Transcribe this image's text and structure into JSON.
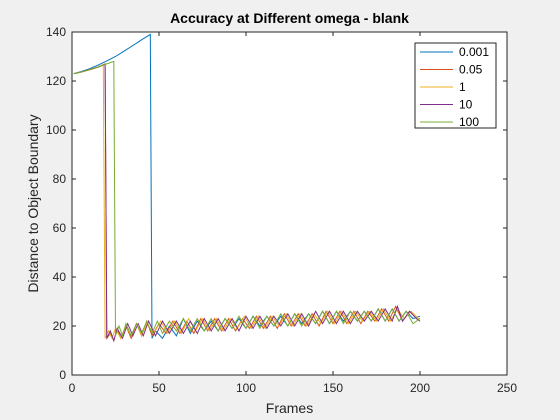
{
  "chart_data": {
    "type": "line",
    "title": "Accuracy at Different omega - blank",
    "xlabel": "Frames",
    "ylabel": "Distance to Object Boundary",
    "xlim": [
      0,
      250
    ],
    "ylim": [
      0,
      140
    ],
    "xticks": [
      "0",
      "50",
      "100",
      "150",
      "200",
      "250"
    ],
    "yticks": [
      "0",
      "20",
      "40",
      "60",
      "80",
      "100",
      "120",
      "140"
    ],
    "grid": false,
    "legend_position": "top-right",
    "series": [
      {
        "name": "0.001",
        "color": "#0072bd",
        "x": [
          1,
          5,
          10,
          15,
          20,
          25,
          30,
          35,
          40,
          45,
          46,
          48,
          52,
          56,
          60,
          64,
          68,
          72,
          76,
          80,
          84,
          88,
          92,
          96,
          100,
          104,
          108,
          112,
          116,
          120,
          124,
          128,
          132,
          136,
          140,
          144,
          148,
          152,
          156,
          160,
          164,
          168,
          172,
          176,
          180,
          184,
          188,
          192,
          196,
          200
        ],
        "y": [
          123,
          123.8,
          125,
          126.5,
          128.2,
          130,
          132.2,
          134.5,
          136.8,
          139,
          15,
          18,
          15,
          20,
          16,
          23,
          17,
          22,
          18,
          22,
          18,
          23,
          19,
          23,
          19,
          24,
          20,
          24,
          20,
          24,
          20,
          25,
          21,
          25,
          21,
          26,
          21,
          26,
          22,
          26,
          22,
          26,
          22,
          27,
          22,
          27,
          22,
          26,
          23,
          24
        ]
      },
      {
        "name": "0.05",
        "color": "#d95319",
        "x": [
          1,
          5,
          10,
          15,
          19,
          20,
          22,
          24,
          26,
          28,
          31,
          34,
          37,
          40,
          43,
          46,
          50,
          54,
          58,
          62,
          66,
          70,
          74,
          78,
          82,
          86,
          90,
          94,
          98,
          102,
          106,
          110,
          114,
          118,
          122,
          126,
          130,
          134,
          138,
          142,
          146,
          150,
          154,
          158,
          162,
          166,
          170,
          174,
          178,
          182,
          186,
          190,
          194,
          198,
          200
        ],
        "y": [
          123,
          123.6,
          124.6,
          125.7,
          127,
          15,
          17,
          14,
          19,
          15,
          20,
          15,
          21,
          16,
          22,
          16,
          21,
          17,
          22,
          17,
          22,
          17,
          23,
          18,
          23,
          18,
          23,
          18,
          23,
          19,
          24,
          19,
          24,
          19,
          25,
          20,
          25,
          20,
          25,
          20,
          26,
          21,
          26,
          21,
          26,
          21,
          26,
          22,
          27,
          22,
          28,
          22,
          26,
          23,
          22
        ]
      },
      {
        "name": "1",
        "color": "#edb120",
        "x": [
          1,
          5,
          10,
          15,
          18,
          19,
          21,
          23,
          25,
          28,
          31,
          34,
          37,
          40,
          43,
          47,
          51,
          55,
          59,
          63,
          67,
          71,
          75,
          79,
          83,
          87,
          91,
          95,
          99,
          103,
          107,
          111,
          115,
          119,
          123,
          127,
          131,
          135,
          139,
          143,
          147,
          151,
          155,
          159,
          163,
          167,
          171,
          175,
          179,
          183,
          187,
          191,
          195,
          199,
          200
        ],
        "y": [
          123,
          123.6,
          124.5,
          125.6,
          126.5,
          15,
          18,
          15,
          19,
          15,
          20,
          16,
          21,
          16,
          21,
          17,
          22,
          17,
          22,
          17,
          23,
          18,
          23,
          18,
          23,
          18,
          23,
          19,
          24,
          19,
          24,
          19,
          24,
          20,
          25,
          20,
          25,
          20,
          25,
          21,
          26,
          21,
          26,
          21,
          26,
          22,
          26,
          22,
          27,
          22,
          27,
          23,
          26,
          23,
          23
        ]
      },
      {
        "name": "10",
        "color": "#7e2f8e",
        "x": [
          1,
          5,
          10,
          15,
          19,
          20,
          22,
          24,
          26,
          29,
          32,
          35,
          38,
          41,
          44,
          48,
          52,
          56,
          60,
          64,
          68,
          72,
          76,
          80,
          84,
          88,
          92,
          96,
          100,
          104,
          108,
          112,
          116,
          120,
          124,
          128,
          132,
          136,
          140,
          144,
          148,
          152,
          156,
          160,
          164,
          168,
          172,
          176,
          180,
          184,
          187,
          190,
          194,
          198,
          200
        ],
        "y": [
          123,
          123.6,
          124.6,
          125.7,
          126.8,
          15,
          18,
          14,
          19,
          15,
          21,
          16,
          21,
          16,
          22,
          16,
          22,
          17,
          22,
          17,
          22,
          17,
          23,
          18,
          23,
          18,
          23,
          18,
          24,
          19,
          24,
          19,
          24,
          20,
          25,
          20,
          25,
          20,
          26,
          21,
          26,
          21,
          26,
          21,
          26,
          22,
          26,
          22,
          27,
          22,
          28,
          22,
          26,
          23,
          22
        ]
      },
      {
        "name": "100",
        "color": "#77ac30",
        "x": [
          1,
          5,
          10,
          15,
          20,
          24,
          25,
          27,
          29,
          31,
          34,
          37,
          40,
          43,
          46,
          49,
          52,
          56,
          60,
          64,
          68,
          72,
          76,
          80,
          84,
          88,
          92,
          96,
          100,
          104,
          108,
          112,
          116,
          120,
          124,
          128,
          132,
          136,
          140,
          144,
          148,
          152,
          156,
          160,
          164,
          168,
          172,
          176,
          180,
          184,
          188,
          192,
          196,
          200
        ],
        "y": [
          123,
          123.6,
          124.6,
          125.8,
          127,
          128,
          16,
          20,
          16,
          21,
          16,
          21,
          17,
          22,
          17,
          22,
          17,
          22,
          18,
          23,
          18,
          23,
          18,
          23,
          18,
          23,
          19,
          24,
          19,
          24,
          19,
          24,
          20,
          25,
          20,
          25,
          20,
          25,
          21,
          26,
          21,
          26,
          21,
          26,
          22,
          26,
          22,
          27,
          22,
          27,
          22,
          26,
          21,
          23
        ]
      }
    ]
  }
}
